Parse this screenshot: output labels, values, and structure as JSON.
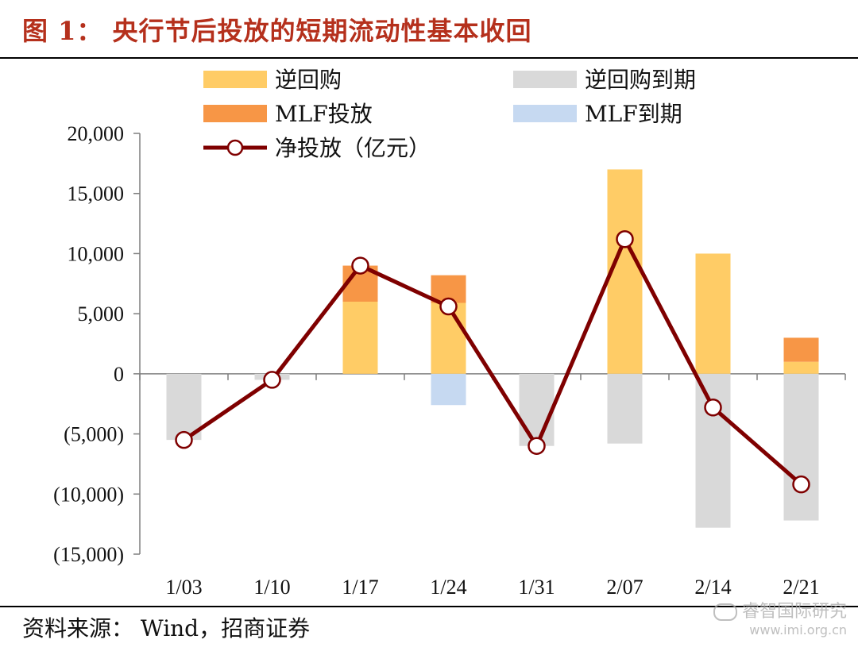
{
  "header": {
    "title": "图 1：  央行节后投放的短期流动性基本收回"
  },
  "footer": {
    "source": "资料来源：  Wind，招商证券"
  },
  "watermark": {
    "line1": "睿智国际研究",
    "line2": "www.imi.org.cn"
  },
  "colors": {
    "reverse_repo": "#FFCC66",
    "reverse_repo_maturity": "#D9D9D9",
    "mlf": "#F79646",
    "mlf_maturity": "#C6D9F1",
    "net_line": "#7F0000",
    "title": "#B5301C"
  },
  "chart_data": {
    "type": "bar",
    "stacked": true,
    "categories": [
      "1/03",
      "1/10",
      "1/17",
      "1/24",
      "1/31",
      "2/07",
      "2/14",
      "2/21"
    ],
    "ylim": [
      -15000,
      20000
    ],
    "yticks": [
      20000,
      15000,
      10000,
      5000,
      0,
      -5000,
      -10000,
      -15000
    ],
    "ytick_labels": [
      "20,000",
      "15,000",
      "10,000",
      "5,000",
      "0",
      "(5,000)",
      "(10,000)",
      "(15,000)"
    ],
    "legend_position": "top",
    "series": [
      {
        "name": "逆回购",
        "kind": "bar",
        "color_key": "reverse_repo",
        "values": [
          0,
          0,
          6000,
          5900,
          0,
          17000,
          10000,
          1000
        ]
      },
      {
        "name": "MLF投放",
        "kind": "bar",
        "color_key": "mlf",
        "values": [
          0,
          0,
          3000,
          2300,
          0,
          0,
          0,
          2000
        ]
      },
      {
        "name": "逆回购到期",
        "kind": "bar",
        "color_key": "reverse_repo_maturity",
        "values": [
          -5500,
          -500,
          0,
          0,
          -6000,
          -5800,
          -12800,
          -12200
        ]
      },
      {
        "name": "MLF到期",
        "kind": "bar",
        "color_key": "mlf_maturity",
        "values": [
          0,
          0,
          0,
          -2600,
          0,
          0,
          0,
          0
        ]
      },
      {
        "name": "净投放（亿元）",
        "kind": "line",
        "color_key": "net_line",
        "values": [
          -5500,
          -500,
          9000,
          5600,
          -6000,
          11200,
          -2800,
          -9200
        ]
      }
    ]
  }
}
